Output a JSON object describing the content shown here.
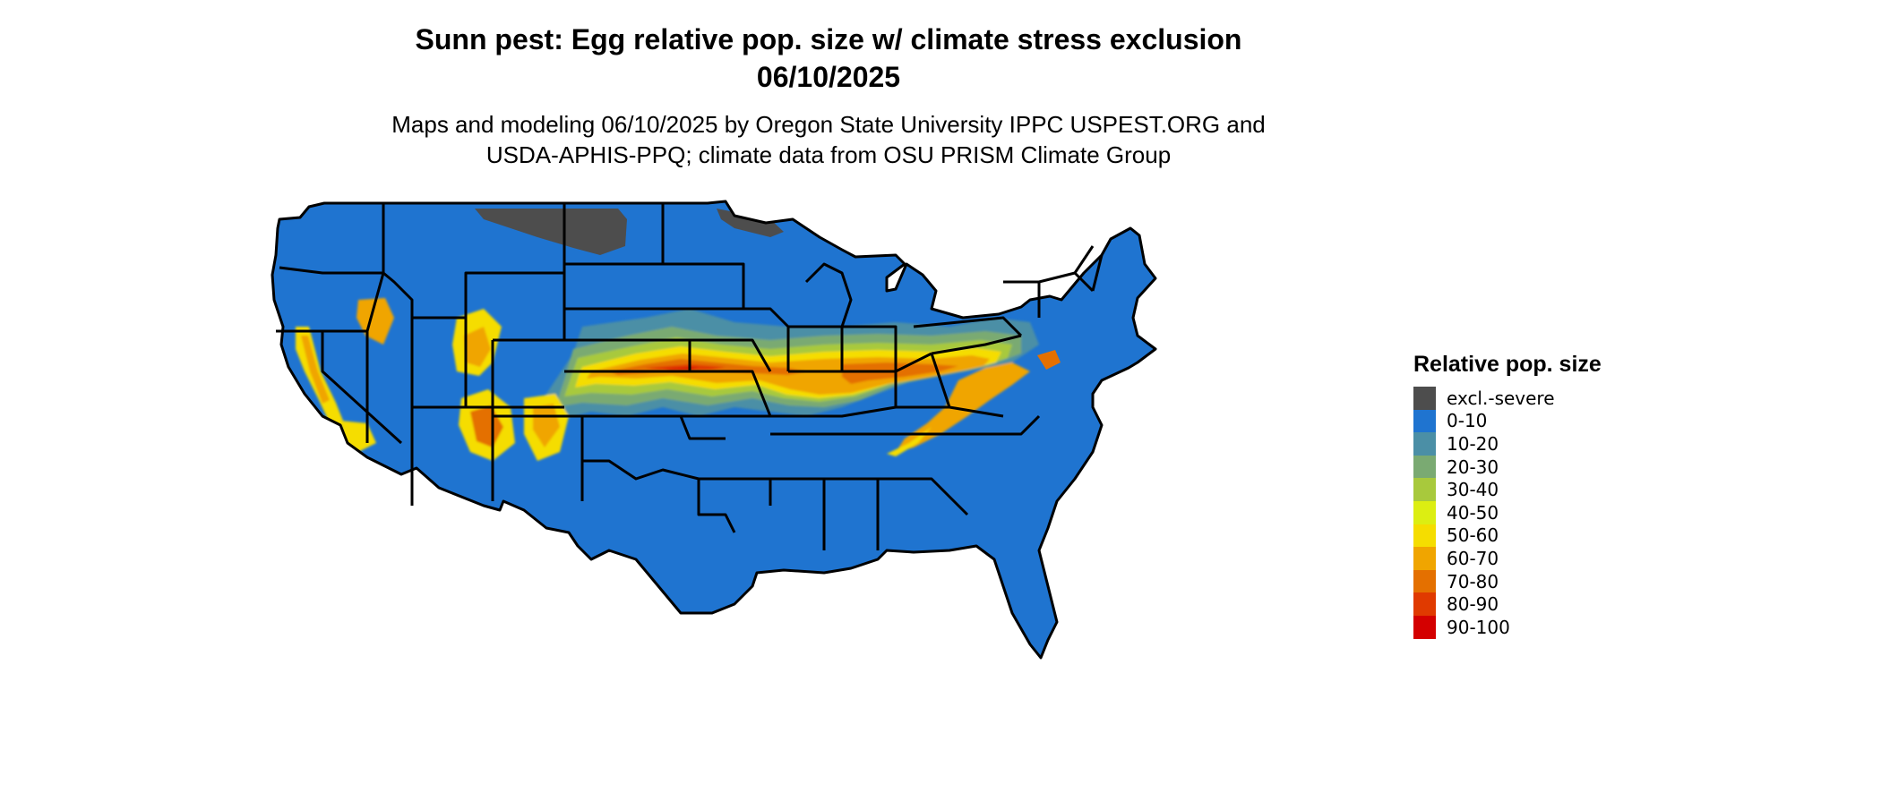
{
  "title": {
    "line1": "Sunn pest: Egg relative pop. size w/ climate stress exclusion",
    "line2": "06/10/2025"
  },
  "subtitle": {
    "line1": "Maps and modeling 06/10/2025 by Oregon State University IPPC USPEST.ORG and",
    "line2": "USDA-APHIS-PPQ; climate data from OSU PRISM Climate Group"
  },
  "legend": {
    "title": "Relative pop. size",
    "items": [
      {
        "label": "excl.-severe",
        "color": "#4d4d4d"
      },
      {
        "label": "0-10",
        "color": "#1f74d0"
      },
      {
        "label": "10-20",
        "color": "#4b8fa6"
      },
      {
        "label": "20-30",
        "color": "#7aaa72"
      },
      {
        "label": "30-40",
        "color": "#a8c93c"
      },
      {
        "label": "40-50",
        "color": "#dcee12"
      },
      {
        "label": "50-60",
        "color": "#f5dd00"
      },
      {
        "label": "60-70",
        "color": "#f0a500"
      },
      {
        "label": "70-80",
        "color": "#e47000"
      },
      {
        "label": "80-90",
        "color": "#e03a00"
      },
      {
        "label": "90-100",
        "color": "#d40000"
      }
    ]
  },
  "map": {
    "region": "Contiguous United States",
    "base_color": "#1f74d0",
    "border_color": "#000000"
  }
}
